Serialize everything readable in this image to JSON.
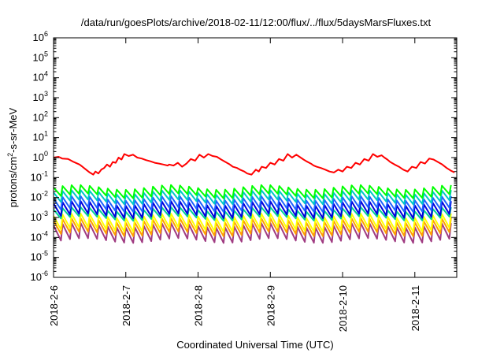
{
  "chart_data": {
    "type": "line",
    "title": "/data/run/goesPlots/archive/2018-02-11/12:00/flux/../flux/5daysMarsFluxes.txt",
    "xlabel": "Coordinated Universal Time (UTC)",
    "ylabel": "protons/cm2-s-sr-MeV",
    "y_scale": "log",
    "ylim": [
      1e-06,
      1000000.0
    ],
    "xlim": [
      "2018-02-06T00:00",
      "2018-02-11T14:00"
    ],
    "x_ticks": [
      "2018-2-6",
      "2018-2-7",
      "2018-2-8",
      "2018-2-9",
      "2018-2-10",
      "2018-2-11"
    ],
    "y_ticks": [
      {
        "base": "10",
        "exp": "6"
      },
      {
        "base": "10",
        "exp": "5"
      },
      {
        "base": "10",
        "exp": "4"
      },
      {
        "base": "10",
        "exp": "3"
      },
      {
        "base": "10",
        "exp": "2"
      },
      {
        "base": "10",
        "exp": "1"
      },
      {
        "base": "10",
        "exp": "0"
      },
      {
        "base": "10",
        "exp": "-1"
      },
      {
        "base": "10",
        "exp": "-2"
      },
      {
        "base": "10",
        "exp": "-3"
      },
      {
        "base": "10",
        "exp": "-4"
      },
      {
        "base": "10",
        "exp": "-5"
      },
      {
        "base": "10",
        "exp": "-6"
      }
    ],
    "grid": false,
    "legend": "none",
    "series": [
      {
        "color": "#ff0000",
        "x": [
          0,
          0.07,
          0.12,
          0.2,
          0.28,
          0.36,
          0.4,
          0.45,
          0.5,
          0.55,
          0.58,
          0.62,
          0.66,
          0.7,
          0.74,
          0.78,
          0.82,
          0.86,
          0.9,
          0.94,
          0.98,
          1.04,
          1.1,
          1.16,
          1.22,
          1.28,
          1.34,
          1.4,
          1.46,
          1.52,
          1.58,
          1.6,
          1.66,
          1.72,
          1.78,
          1.84,
          1.9,
          1.96,
          2.02,
          2.08,
          2.14,
          2.2,
          2.26,
          2.32,
          2.38,
          2.44,
          2.48,
          2.54,
          2.58,
          2.64,
          2.68,
          2.74,
          2.8,
          2.84,
          2.88,
          2.94,
          3.0,
          3.06,
          3.12,
          3.18,
          3.24,
          3.3,
          3.36,
          3.42,
          3.46,
          3.5,
          3.56,
          3.6,
          3.64,
          3.7,
          3.76,
          3.82,
          3.88,
          3.94,
          4.0,
          4.06,
          4.12,
          4.18,
          4.24,
          4.3,
          4.36,
          4.42,
          4.48,
          4.54,
          4.58,
          4.62,
          4.66,
          4.72,
          4.78,
          4.84,
          4.9,
          4.96,
          5.02,
          5.08,
          5.14,
          5.2,
          5.26,
          5.32,
          5.38,
          5.44,
          5.5,
          5.55
        ],
        "y": [
          1.0,
          1.1,
          0.9,
          0.85,
          0.6,
          0.45,
          0.35,
          0.25,
          0.18,
          0.14,
          0.2,
          0.16,
          0.25,
          0.3,
          0.45,
          0.35,
          0.6,
          0.55,
          1.0,
          0.8,
          1.5,
          1.2,
          1.4,
          1.0,
          0.9,
          0.75,
          0.65,
          0.55,
          0.5,
          0.45,
          0.4,
          0.45,
          0.4,
          0.55,
          0.35,
          0.5,
          0.85,
          0.7,
          1.4,
          1.0,
          1.5,
          1.2,
          1.1,
          0.8,
          0.6,
          0.45,
          0.35,
          0.3,
          0.25,
          0.2,
          0.16,
          0.14,
          0.25,
          0.2,
          0.35,
          0.3,
          0.55,
          0.45,
          0.85,
          0.7,
          1.5,
          1.0,
          1.4,
          1.0,
          0.8,
          0.65,
          0.5,
          0.4,
          0.35,
          0.3,
          0.25,
          0.2,
          0.18,
          0.25,
          0.2,
          0.35,
          0.3,
          0.55,
          0.45,
          0.85,
          0.7,
          1.5,
          1.1,
          1.3,
          1.0,
          0.8,
          0.6,
          0.45,
          0.35,
          0.25,
          0.2,
          0.35,
          0.3,
          0.6,
          0.5,
          0.9,
          0.8,
          0.6,
          0.45,
          0.3,
          0.22,
          0.18
        ]
      },
      {
        "color": "#00ff00",
        "pattern": "sawtooth",
        "period_days": 0.125,
        "x_range": [
          0,
          5.55
        ],
        "peak": 0.032,
        "trough": 0.012
      },
      {
        "color": "#00c8c8",
        "pattern": "sawtooth",
        "period_days": 0.125,
        "x_range": [
          0,
          5.55
        ],
        "peak": 0.018,
        "trough": 0.006
      },
      {
        "color": "#1e64ff",
        "pattern": "sawtooth",
        "period_days": 0.125,
        "x_range": [
          0,
          5.55
        ],
        "peak": 0.009,
        "trough": 0.0025
      },
      {
        "color": "#0000dc",
        "pattern": "sawtooth",
        "period_days": 0.125,
        "x_range": [
          0,
          5.55
        ],
        "peak": 0.005,
        "trough": 0.0012
      },
      {
        "color": "#00d296",
        "pattern": "sawtooth",
        "period_days": 0.125,
        "x_range": [
          0,
          5.55
        ],
        "peak": 0.0025,
        "trough": 0.0009
      },
      {
        "color": "#ffff00",
        "pattern": "sawtooth",
        "period_days": 0.125,
        "x_range": [
          0,
          5.55
        ],
        "peak": 0.0012,
        "trough": 0.00025
      },
      {
        "color": "#ffa000",
        "pattern": "sawtooth",
        "period_days": 0.125,
        "x_range": [
          0,
          5.55
        ],
        "peak": 0.0007,
        "trough": 0.00015
      },
      {
        "color": "#a03c82",
        "pattern": "sawtooth",
        "period_days": 0.125,
        "x_range": [
          0,
          5.55
        ],
        "peak": 0.0004,
        "trough": 7e-05
      }
    ]
  }
}
